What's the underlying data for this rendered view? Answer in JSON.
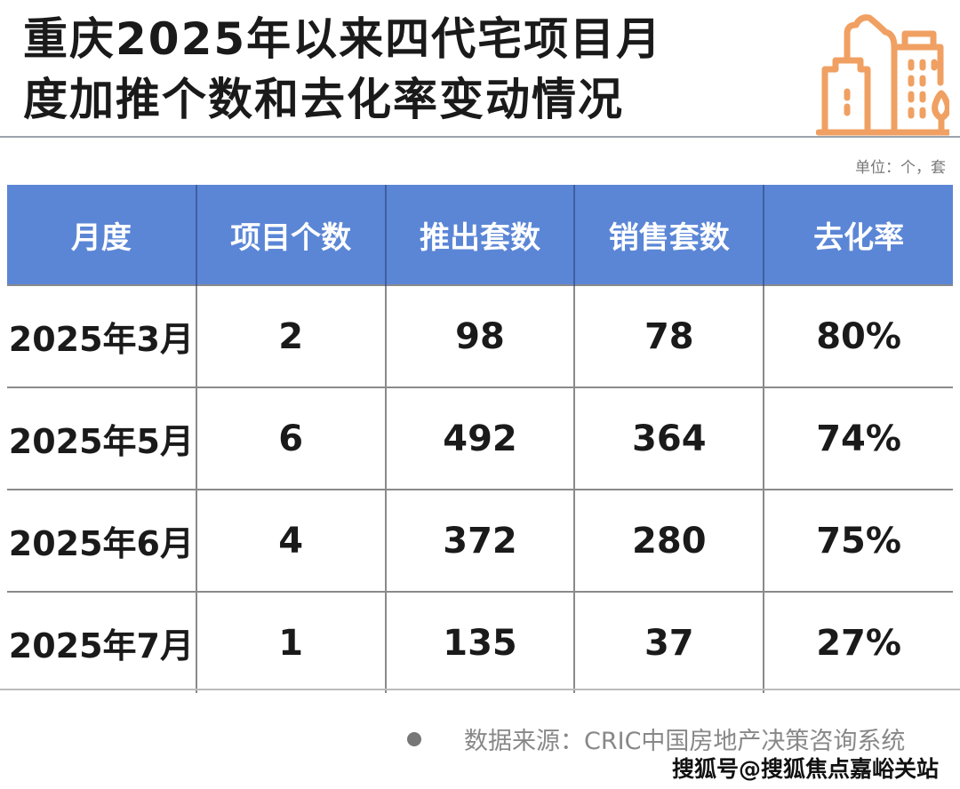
{
  "title_lines": [
    "重庆2025年以来四代宅项目月",
    "度加推个数和去化率变动情况"
  ],
  "header_icon": "city-buildings-icon",
  "accent_color": "#5b86d6",
  "icon_color": "#f0a062",
  "unit": "单位：个，套",
  "chart_data": {
    "type": "table",
    "columns": [
      "月度",
      "项目个数",
      "推出套数",
      "销售套数",
      "去化率"
    ],
    "rows": [
      [
        "2025年3月",
        "2",
        "98",
        "78",
        "80%"
      ],
      [
        "2025年5月",
        "6",
        "492",
        "364",
        "74%"
      ],
      [
        "2025年6月",
        "4",
        "372",
        "280",
        "75%"
      ],
      [
        "2025年7月",
        "1",
        "135",
        "37",
        "27%"
      ]
    ]
  },
  "source": "数据来源：CRIC中国房地产决策咨询系统",
  "watermark": "搜狐号@搜狐焦点嘉峪关站"
}
